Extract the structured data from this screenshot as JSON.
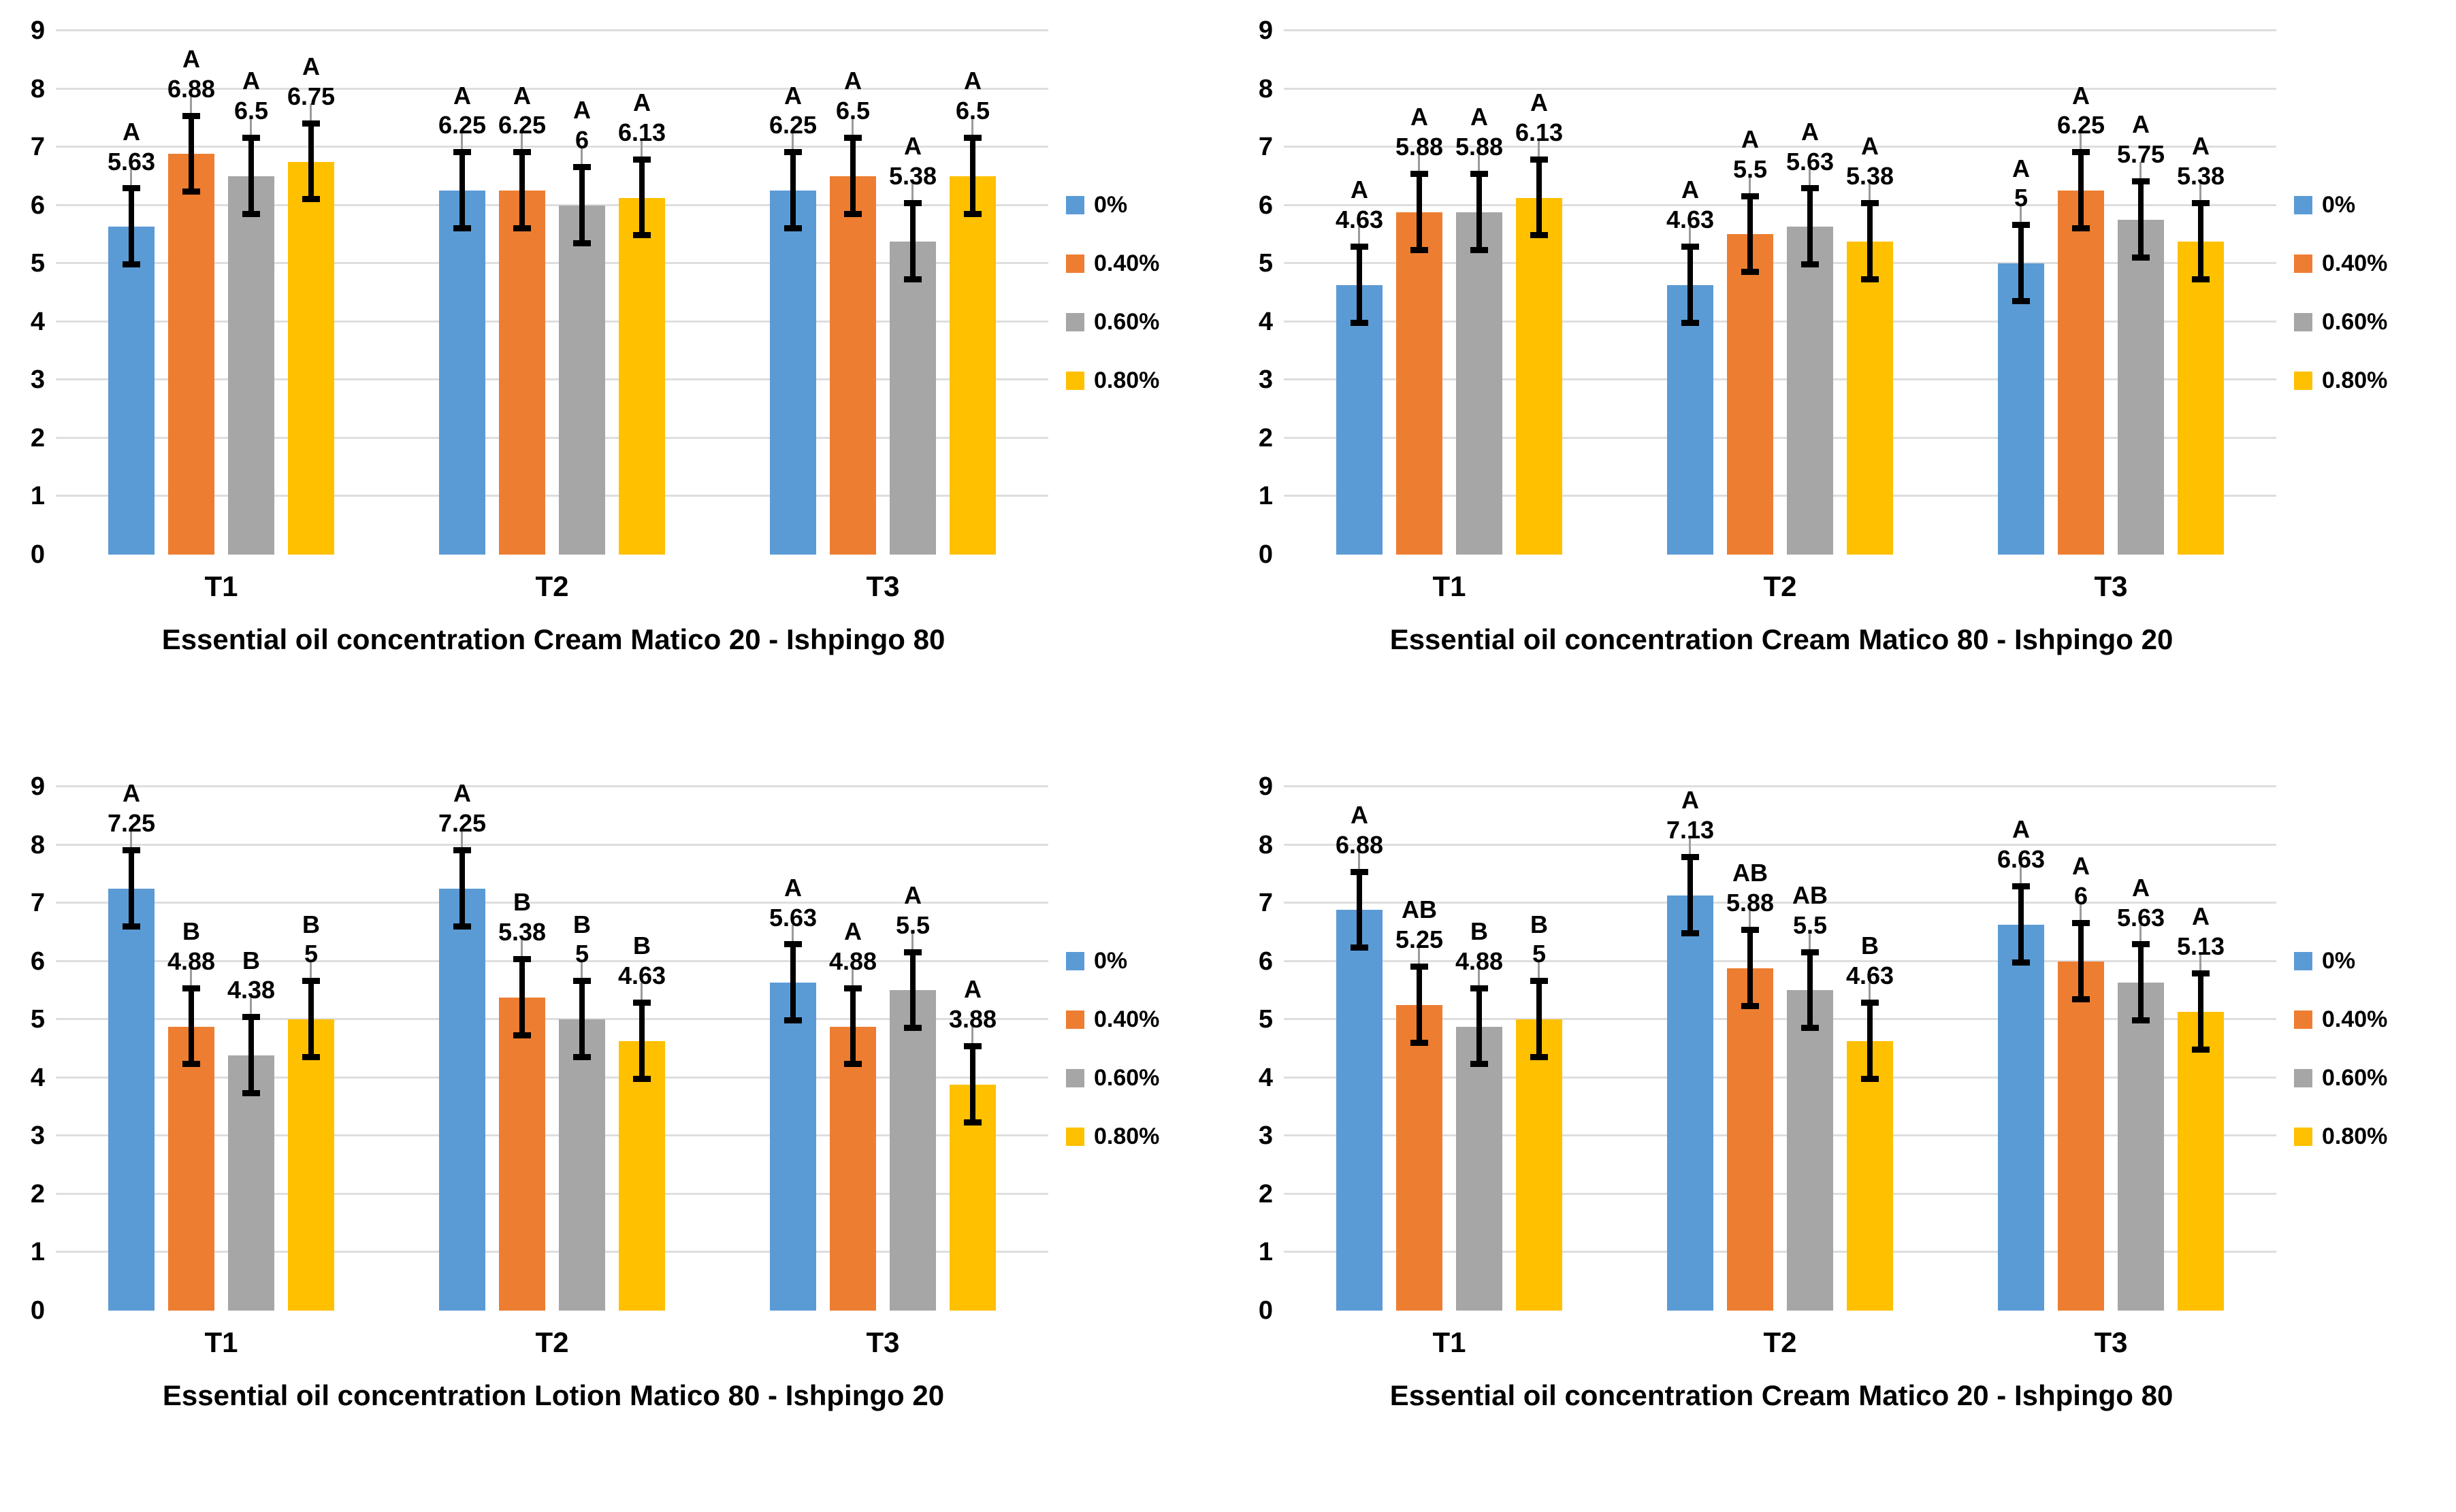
{
  "figure": {
    "background": "#FFFFFF",
    "gridline_color": "#DEDEDE",
    "text_color": "#000000",
    "error_bar": {
      "half_range": 0.7,
      "thin_extension": 0.3,
      "color": "#000000",
      "thin_color": "#9B9B9B"
    },
    "series_colors": {
      "0%": "#5B9BD5",
      "0.40%": "#ED7D31",
      "0.60%": "#A6A6A6",
      "0.80%": "#FFC000"
    }
  },
  "chart_data": [
    {
      "type": "bar",
      "title": "Essential oil concentration Cream Matico 20 - Ishpingo 80",
      "xlabel": "",
      "ylabel": "",
      "ylim": [
        0,
        9
      ],
      "yticks": [
        0,
        1,
        2,
        3,
        4,
        5,
        6,
        7,
        8,
        9
      ],
      "grid": true,
      "legend_position": "right",
      "categories": [
        "T1",
        "T2",
        "T3"
      ],
      "series": [
        {
          "name": "0%",
          "color": "#5B9BD5",
          "values": [
            5.63,
            6.25,
            6.25
          ],
          "labels": [
            "5.63",
            "6.25",
            "6.25"
          ],
          "letters": [
            "A",
            "A",
            "A"
          ]
        },
        {
          "name": "0.40%",
          "color": "#ED7D31",
          "values": [
            6.88,
            6.25,
            6.5
          ],
          "labels": [
            "6.88",
            "6.25",
            "6.5"
          ],
          "letters": [
            "A",
            "A",
            "A"
          ]
        },
        {
          "name": "0.60%",
          "color": "#A6A6A6",
          "values": [
            6.5,
            6,
            5.38
          ],
          "labels": [
            "6.5",
            "6",
            "5.38"
          ],
          "letters": [
            "A",
            "A",
            "A"
          ]
        },
        {
          "name": "0.80%",
          "color": "#FFC000",
          "values": [
            6.75,
            6.13,
            6.5
          ],
          "labels": [
            "6.75",
            "6.13",
            "6.5"
          ],
          "letters": [
            "A",
            "A",
            "A"
          ]
        }
      ]
    },
    {
      "type": "bar",
      "title": "Essential oil concentration Cream Matico 80 - Ishpingo 20",
      "xlabel": "",
      "ylabel": "",
      "ylim": [
        0,
        9
      ],
      "yticks": [
        0,
        1,
        2,
        3,
        4,
        5,
        6,
        7,
        8,
        9
      ],
      "grid": true,
      "legend_position": "right",
      "categories": [
        "T1",
        "T2",
        "T3"
      ],
      "series": [
        {
          "name": "0%",
          "color": "#5B9BD5",
          "values": [
            4.63,
            4.63,
            5
          ],
          "labels": [
            "4.63",
            "4.63",
            "5"
          ],
          "letters": [
            "A",
            "A",
            "A"
          ]
        },
        {
          "name": "0.40%",
          "color": "#ED7D31",
          "values": [
            5.88,
            5.5,
            6.25
          ],
          "labels": [
            "5.88",
            "5.5",
            "6.25"
          ],
          "letters": [
            "A",
            "A",
            "A"
          ]
        },
        {
          "name": "0.60%",
          "color": "#A6A6A6",
          "values": [
            5.88,
            5.63,
            5.75
          ],
          "labels": [
            "5.88",
            "5.63",
            "5.75"
          ],
          "letters": [
            "A",
            "A",
            "A"
          ]
        },
        {
          "name": "0.80%",
          "color": "#FFC000",
          "values": [
            6.13,
            5.38,
            5.38
          ],
          "labels": [
            "6.13",
            "5.38",
            "5.38"
          ],
          "letters": [
            "A",
            "A",
            "A"
          ]
        }
      ]
    },
    {
      "type": "bar",
      "title": "Essential oil concentration Lotion Matico 80 - Ishpingo 20",
      "xlabel": "",
      "ylabel": "",
      "ylim": [
        0,
        9
      ],
      "yticks": [
        0,
        1,
        2,
        3,
        4,
        5,
        6,
        7,
        8,
        9
      ],
      "grid": true,
      "legend_position": "right",
      "categories": [
        "T1",
        "T2",
        "T3"
      ],
      "series": [
        {
          "name": "0%",
          "color": "#5B9BD5",
          "values": [
            7.25,
            7.25,
            5.63
          ],
          "labels": [
            "7.25",
            "7.25",
            "5.63"
          ],
          "letters": [
            "A",
            "A",
            "A"
          ]
        },
        {
          "name": "0.40%",
          "color": "#ED7D31",
          "values": [
            4.88,
            5.38,
            4.88
          ],
          "labels": [
            "4.88",
            "5.38",
            "4.88"
          ],
          "letters": [
            "B",
            "B",
            "A"
          ]
        },
        {
          "name": "0.60%",
          "color": "#A6A6A6",
          "values": [
            4.38,
            5,
            5.5
          ],
          "labels": [
            "4.38",
            "5",
            "5.5"
          ],
          "letters": [
            "B",
            "B",
            "A"
          ]
        },
        {
          "name": "0.80%",
          "color": "#FFC000",
          "values": [
            5,
            4.63,
            3.88
          ],
          "labels": [
            "5",
            "4.63",
            "3.88"
          ],
          "letters": [
            "B",
            "B",
            "A"
          ]
        }
      ]
    },
    {
      "type": "bar",
      "title": "Essential oil concentration Cream Matico 20 - Ishpingo 80",
      "xlabel": "",
      "ylabel": "",
      "ylim": [
        0,
        9
      ],
      "yticks": [
        0,
        1,
        2,
        3,
        4,
        5,
        6,
        7,
        8,
        9
      ],
      "grid": true,
      "legend_position": "right",
      "categories": [
        "T1",
        "T2",
        "T3"
      ],
      "series": [
        {
          "name": "0%",
          "color": "#5B9BD5",
          "values": [
            6.88,
            7.13,
            6.63
          ],
          "labels": [
            "6.88",
            "7.13",
            "6.63"
          ],
          "letters": [
            "A",
            "A",
            "A"
          ]
        },
        {
          "name": "0.40%",
          "color": "#ED7D31",
          "values": [
            5.25,
            5.88,
            6
          ],
          "labels": [
            "5.25",
            "5.88",
            "6"
          ],
          "letters": [
            "AB",
            "AB",
            "A"
          ]
        },
        {
          "name": "0.60%",
          "color": "#A6A6A6",
          "values": [
            4.88,
            5.5,
            5.63
          ],
          "labels": [
            "4.88",
            "5.5",
            "5.63"
          ],
          "letters": [
            "B",
            "AB",
            "A"
          ]
        },
        {
          "name": "0.80%",
          "color": "#FFC000",
          "values": [
            5,
            4.63,
            5.13
          ],
          "labels": [
            "5",
            "4.63",
            "5.13"
          ],
          "letters": [
            "B",
            "B",
            "A"
          ]
        }
      ]
    }
  ]
}
